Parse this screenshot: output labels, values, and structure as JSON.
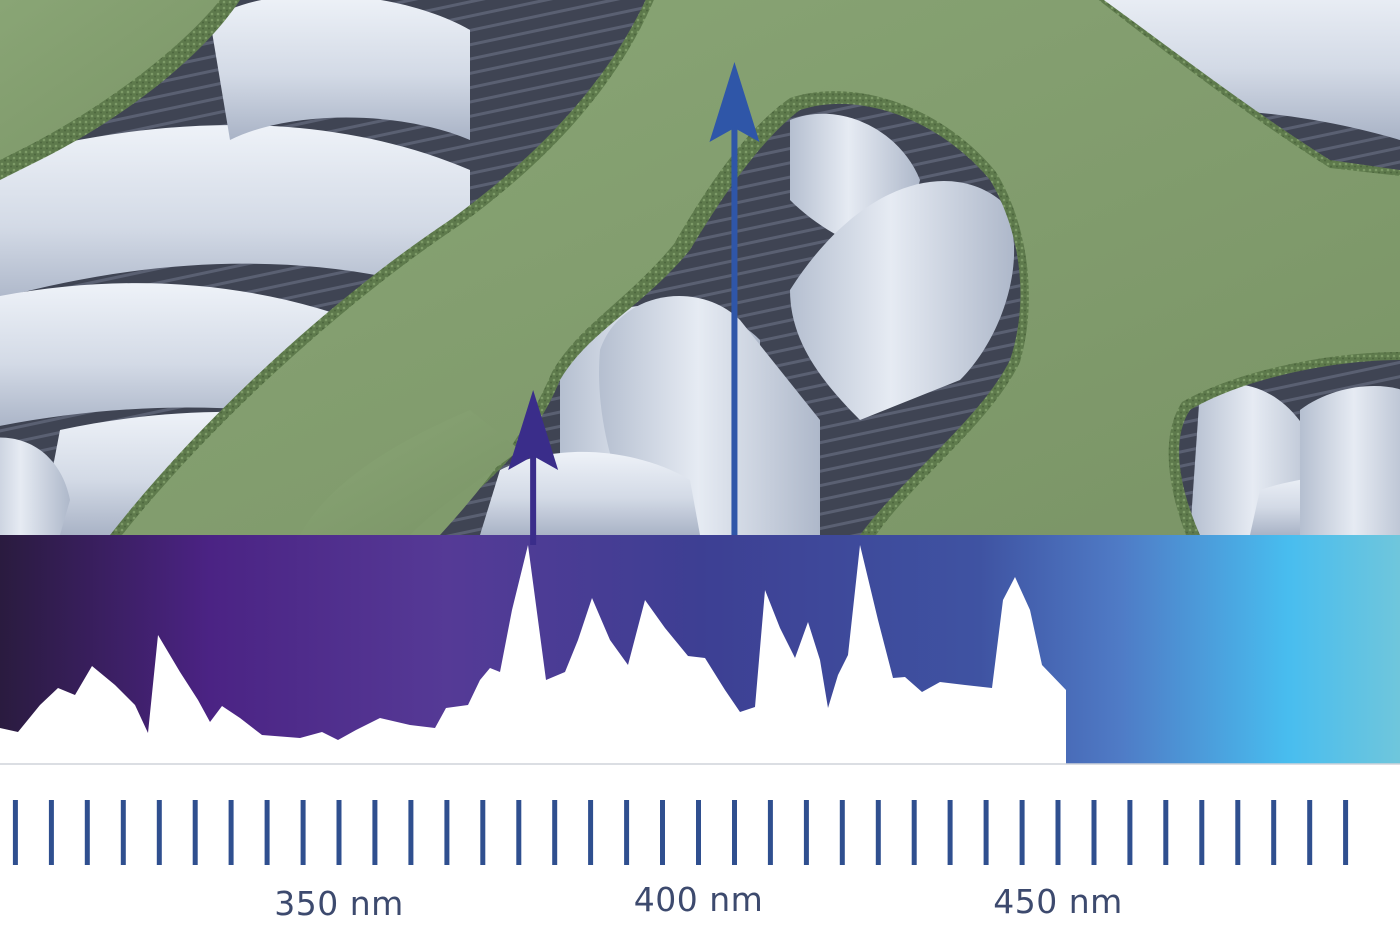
{
  "axis": {
    "unit": "nm",
    "ticks": [
      {
        "value": 350,
        "label": "350 nm"
      },
      {
        "value": 400,
        "label": "400 nm"
      },
      {
        "value": 450,
        "label": "450 nm"
      }
    ]
  },
  "markers": [
    {
      "name": "short-arrow",
      "wavelength_nm": 377
    },
    {
      "name": "tall-arrow",
      "wavelength_nm": 405
    }
  ],
  "colors": {
    "coating": "#7f9a6a",
    "fiber": "#d2d9e4",
    "gap": "#4a4f5e",
    "arrow_short": "#3a2d8a",
    "arrow_tall": "#2f56a8",
    "tick": "#2f4f8f",
    "label": "#3d4a6e"
  }
}
